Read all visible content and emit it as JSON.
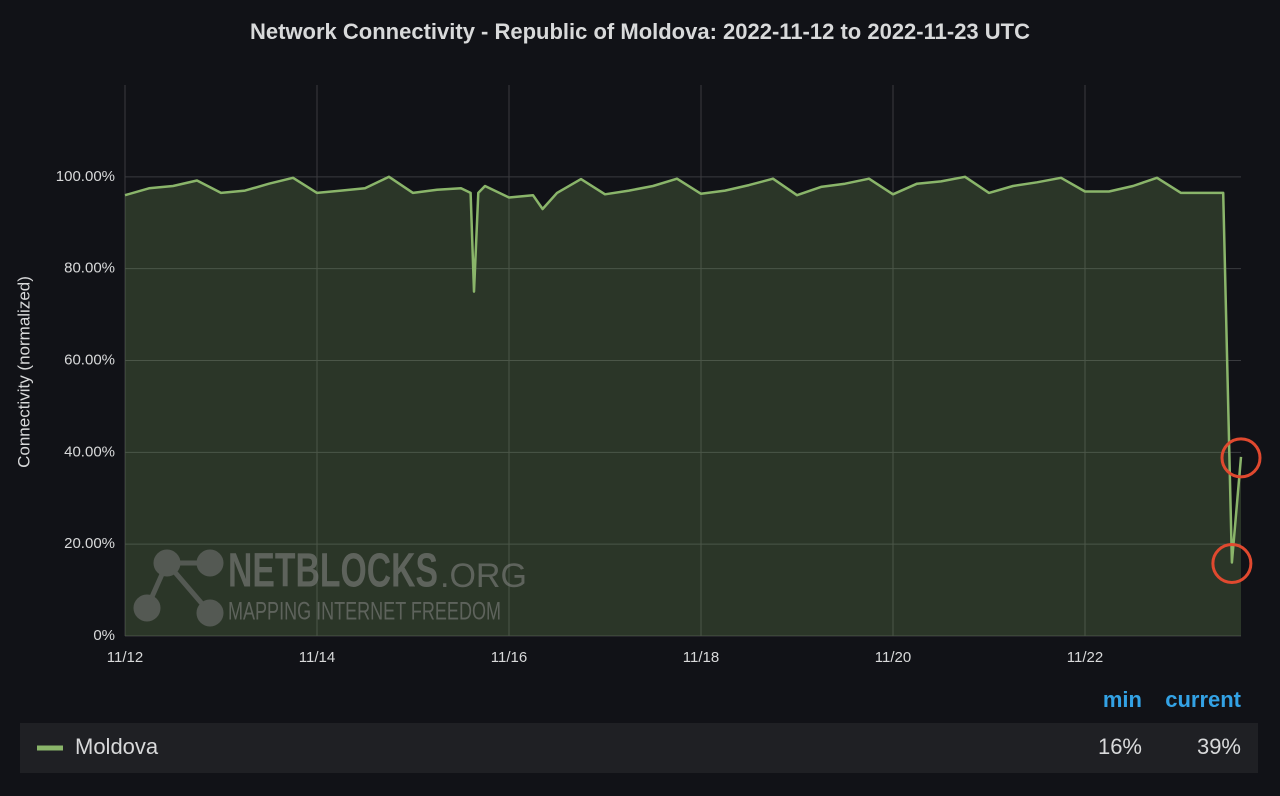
{
  "chart_data": {
    "type": "line",
    "title": "Network Connectivity - Republic of Moldova: 2022-11-12 to 2022-11-23 UTC",
    "y_label": "Connectivity (normalized)",
    "x": [
      12,
      12.25,
      12.5,
      12.75,
      13,
      13.25,
      13.5,
      13.75,
      14,
      14.25,
      14.5,
      14.75,
      15,
      15.25,
      15.5,
      15.6,
      15.635,
      15.68,
      15.75,
      16,
      16.25,
      16.35,
      16.5,
      16.75,
      17,
      17.25,
      17.5,
      17.75,
      18,
      18.25,
      18.5,
      18.75,
      19,
      19.25,
      19.5,
      19.75,
      20,
      20.25,
      20.5,
      20.75,
      21,
      21.25,
      21.5,
      21.75,
      22,
      22.25,
      22.5,
      22.75,
      23,
      23.25,
      23.44,
      23.53,
      23.625
    ],
    "series": [
      {
        "name": "Moldova",
        "color": "#8ab56a",
        "values": [
          96,
          97.5,
          98,
          99.2,
          96.5,
          97,
          98.5,
          99.8,
          96.5,
          97,
          97.5,
          100,
          96.5,
          97.2,
          97.5,
          96.5,
          75,
          96.5,
          98,
          95.5,
          96,
          93,
          96.5,
          99.5,
          96.2,
          97,
          98,
          99.6,
          96.3,
          97,
          98.2,
          99.6,
          96,
          97.8,
          98.5,
          99.6,
          96.2,
          98.5,
          99,
          100,
          96.5,
          98,
          98.8,
          99.8,
          96.8,
          96.8,
          98,
          99.8,
          96.5,
          96.5,
          96.5,
          16,
          39
        ]
      }
    ],
    "xlim": [
      12,
      23.625
    ],
    "xticks": [
      {
        "value": 12,
        "label": "11/12"
      },
      {
        "value": 14,
        "label": "11/14"
      },
      {
        "value": 16,
        "label": "11/16"
      },
      {
        "value": 18,
        "label": "11/18"
      },
      {
        "value": 20,
        "label": "11/20"
      },
      {
        "value": 22,
        "label": "11/22"
      }
    ],
    "ylim": [
      0,
      120
    ],
    "yticks": [
      {
        "value": 0,
        "label": "0%"
      },
      {
        "value": 20,
        "label": "20.00%"
      },
      {
        "value": 40,
        "label": "40.00%"
      },
      {
        "value": 60,
        "label": "60.00%"
      },
      {
        "value": 80,
        "label": "80.00%"
      },
      {
        "value": 100,
        "label": "100.00%"
      }
    ],
    "grid": true,
    "legend_stats": [
      {
        "name": "min",
        "value": "16%"
      },
      {
        "name": "current",
        "value": "39%"
      }
    ],
    "watermark": {
      "title": "NETBLOCKS",
      "suffix": ".ORG",
      "tagline": "MAPPING INTERNET FREEDOM"
    }
  }
}
